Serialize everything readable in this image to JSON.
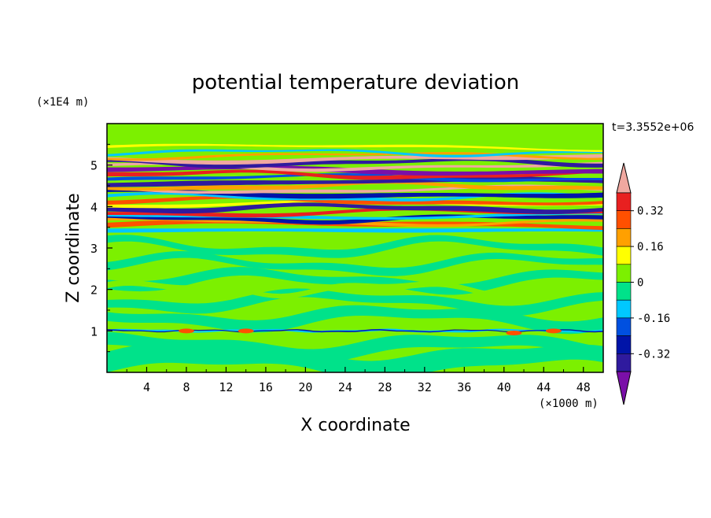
{
  "chart_data": {
    "type": "heatmap",
    "title": "potential temperature deviation",
    "xlabel": "X coordinate",
    "ylabel": "Z coordinate",
    "x_unit": "(×1000 m)",
    "y_unit": "(×1E4 m)",
    "time_label": "t=3.3552e+06",
    "xlim": [
      0,
      50
    ],
    "ylim": [
      0,
      6
    ],
    "x_ticks": [
      "4",
      "8",
      "12",
      "16",
      "20",
      "24",
      "28",
      "32",
      "36",
      "40",
      "44",
      "48"
    ],
    "y_ticks": [
      "1",
      "2",
      "3",
      "4",
      "5"
    ],
    "colorbar": {
      "labels": [
        "0.32",
        "0.16",
        "0",
        "-0.16",
        "-0.32"
      ],
      "levels": [
        -0.4,
        -0.32,
        -0.24,
        -0.16,
        -0.08,
        0,
        0.08,
        0.16,
        0.24,
        0.32,
        0.4
      ],
      "colors": [
        "#7a0fa8",
        "#2f1a9e",
        "#0014a8",
        "#0050e0",
        "#00c8ff",
        "#00e28a",
        "#7cf000",
        "#ffff00",
        "#ffa000",
        "#ff5000",
        "#e82020",
        "#f0a8a0"
      ]
    },
    "bands": [
      {
        "y": 0.0,
        "h": 1.0,
        "level": "0"
      },
      {
        "y": 1.0,
        "h": 2.4,
        "level": "0"
      },
      {
        "y": 3.4,
        "h": 0.1,
        "level": "-0.08"
      },
      {
        "y": 3.5,
        "h": 2.0,
        "level": "mixed"
      },
      {
        "y": 5.5,
        "h": 0.5,
        "level": "0"
      }
    ]
  }
}
